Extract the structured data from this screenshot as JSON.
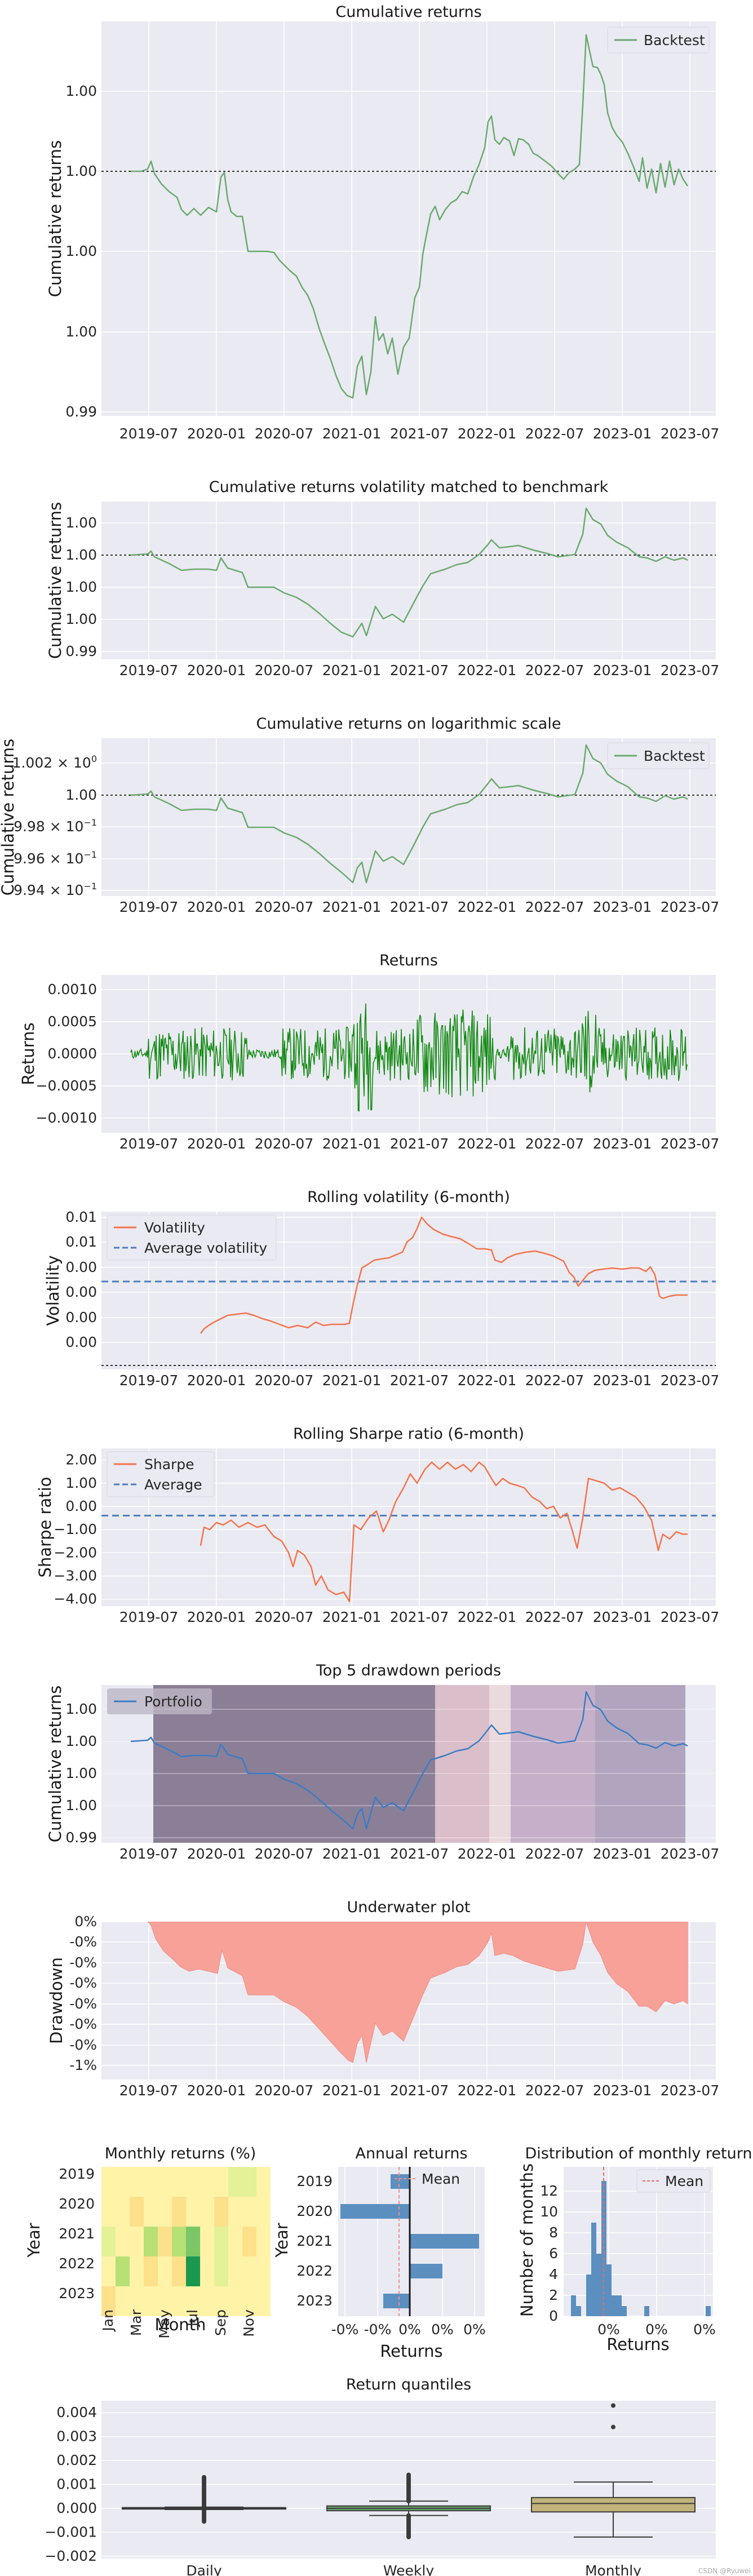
{
  "chart_data": [
    {
      "id": "cum",
      "type": "line",
      "title": "Cumulative returns",
      "ylabel": "Cumulative returns",
      "x_tick_labels": [
        "2019-07",
        "2020-01",
        "2020-07",
        "2021-01",
        "2021-07",
        "2022-01",
        "2022-07",
        "2023-01",
        "2023-07"
      ],
      "y_tick_labels": [
        "1.00",
        "1.00",
        "1.00",
        "1.00",
        "0.99"
      ],
      "legend": [
        "Backtest"
      ],
      "legend_position": "top-right",
      "reference_line": 1.0,
      "series_color": "#6aaa6e",
      "series": [
        {
          "name": "Backtest",
          "x": [
            "2019-04",
            "2019-06",
            "2019-07",
            "2019-08",
            "2019-10",
            "2019-12",
            "2020-01",
            "2020-03",
            "2020-05",
            "2020-07",
            "2020-09",
            "2020-11",
            "2021-01",
            "2021-02",
            "2021-03",
            "2021-05",
            "2021-07",
            "2021-09",
            "2021-11",
            "2022-01",
            "2022-02",
            "2022-04",
            "2022-06",
            "2022-08",
            "2022-10",
            "2022-11",
            "2022-12",
            "2023-02",
            "2023-04",
            "2023-06"
          ],
          "values": [
            1.0,
            1.0,
            1.0002,
            0.9996,
            0.9993,
            0.9994,
            0.9991,
            0.9989,
            0.9989,
            0.9985,
            0.9982,
            0.9975,
            0.9968,
            0.9974,
            0.997,
            0.9972,
            0.9988,
            0.9992,
            0.9994,
            1.001,
            1.0007,
            1.0002,
            1.0002,
            0.9998,
            1.0003,
            1.0034,
            1.0012,
            1.0002,
            0.9999,
            0.9996
          ]
        }
      ]
    },
    {
      "id": "volmatch",
      "type": "line",
      "title": "Cumulative returns volatility matched to benchmark",
      "ylabel": "Cumulative returns",
      "x_tick_labels": [
        "2019-07",
        "2020-01",
        "2020-07",
        "2021-01",
        "2021-07",
        "2022-01",
        "2022-07",
        "2023-01",
        "2023-07"
      ],
      "y_tick_labels": [
        "1.00",
        "1.00",
        "1.00",
        "1.00",
        "0.99"
      ],
      "reference_line": 1.0,
      "series_color": "#6aaa6e"
    },
    {
      "id": "log",
      "type": "line",
      "title": "Cumulative returns on logarithmic scale",
      "ylabel": "Cumulative returns",
      "log_scale": true,
      "x_tick_labels": [
        "2019-07",
        "2020-01",
        "2020-07",
        "2021-01",
        "2021-07",
        "2022-01",
        "2022-07",
        "2023-01",
        "2023-07"
      ],
      "y_tick_labels": [
        {
          "base": "1.002 × 10",
          "exp": "0"
        },
        {
          "base": "1.00",
          "exp": ""
        },
        {
          "base": "9.98 × 10",
          "exp": "−1"
        },
        {
          "base": "9.96 × 10",
          "exp": "−1"
        },
        {
          "base": "9.94 × 10",
          "exp": "−1"
        }
      ],
      "legend": [
        "Backtest"
      ],
      "legend_position": "top-right",
      "series_color": "#6aaa6e"
    },
    {
      "id": "returns",
      "type": "line",
      "title": "Returns",
      "ylabel": "Returns",
      "x_tick_labels": [
        "2019-07",
        "2020-01",
        "2020-07",
        "2021-01",
        "2021-07",
        "2022-01",
        "2022-07",
        "2023-01",
        "2023-07"
      ],
      "y_tick_labels": [
        "0.0010",
        "0.0005",
        "0.0000",
        "−0.0005",
        "−0.0010"
      ],
      "series_color": "#138a13"
    },
    {
      "id": "vol",
      "type": "line",
      "title": "Rolling volatility (6-month)",
      "ylabel": "Volatility",
      "x_tick_labels": [
        "2019-07",
        "2020-01",
        "2020-07",
        "2021-01",
        "2021-07",
        "2022-01",
        "2022-07",
        "2023-01",
        "2023-07"
      ],
      "y_tick_labels": [
        "0.01",
        "0.01",
        "0.00",
        "0.00",
        "0.00",
        "0.00"
      ],
      "legend": [
        "Volatility",
        "Average volatility"
      ],
      "legend_position": "top-left",
      "series_color": "#f5734a",
      "avg_color": "#4c7fbf"
    },
    {
      "id": "sharpe",
      "type": "line",
      "title": "Rolling Sharpe ratio (6-month)",
      "ylabel": "Sharpe ratio",
      "x_tick_labels": [
        "2019-07",
        "2020-01",
        "2020-07",
        "2021-01",
        "2021-07",
        "2022-01",
        "2022-07",
        "2023-01",
        "2023-07"
      ],
      "y_tick_labels": [
        "2.00",
        "1.00",
        "0.00",
        "−1.00",
        "−2.00",
        "−3.00",
        "−4.00"
      ],
      "legend": [
        "Sharpe",
        "Average"
      ],
      "legend_position": "top-left",
      "ylim": [
        -4.3,
        2.5
      ],
      "average": -0.4,
      "series_color": "#f5734a",
      "avg_color": "#4c7fbf"
    },
    {
      "id": "drawdown",
      "type": "line",
      "title": "Top 5 drawdown periods",
      "ylabel": "Cumulative returns",
      "x_tick_labels": [
        "2019-07",
        "2020-01",
        "2020-07",
        "2021-01",
        "2021-07",
        "2022-01",
        "2022-07",
        "2023-01",
        "2023-07"
      ],
      "y_tick_labels": [
        "1.00",
        "1.00",
        "1.00",
        "1.00",
        "0.99"
      ],
      "legend": [
        "Portfolio"
      ],
      "legend_position": "top-left",
      "series_color": "#3a7dc4",
      "periods": [
        {
          "start": "2019-08",
          "end": "2021-08",
          "color": "#6b5a78"
        },
        {
          "start": "2021-08",
          "end": "2021-12",
          "color": "#c88a9a"
        },
        {
          "start": "2021-12",
          "end": "2022-03",
          "color": "#e9cfd0"
        },
        {
          "start": "2022-03",
          "end": "2022-11",
          "color": "#a77fa8"
        },
        {
          "start": "2022-11",
          "end": "2023-06",
          "color": "#7f6a93"
        }
      ]
    },
    {
      "id": "underwater",
      "type": "area",
      "title": "Underwater plot",
      "ylabel": "Drawdown",
      "x_tick_labels": [
        "2019-07",
        "2020-01",
        "2020-07",
        "2021-01",
        "2021-07",
        "2022-01",
        "2022-07",
        "2023-01",
        "2023-07"
      ],
      "y_tick_labels": [
        "0%",
        "-0%",
        "-0%",
        "-0%",
        "-0%",
        "-0%",
        "-0%",
        "-1%"
      ],
      "series_color": "#f7a199"
    },
    {
      "id": "monthly",
      "type": "heatmap",
      "title": "Monthly returns (%)",
      "ylabel": "Year",
      "xlabel": "Month",
      "categories": [
        "Jan",
        "Mar",
        "May",
        "Jul",
        "Sep",
        "Nov"
      ],
      "years": [
        "2019",
        "2020",
        "2021",
        "2022",
        "2023"
      ]
    },
    {
      "id": "annual",
      "type": "bar",
      "title": "Annual returns",
      "ylabel": "Year",
      "xlabel": "Returns",
      "categories": [
        "2019",
        "2020",
        "2021",
        "2022",
        "2023"
      ],
      "values": [
        -0.02,
        -0.09,
        0.09,
        0.04,
        -0.03
      ],
      "x_tick_labels": [
        "-0%",
        "-0%",
        "0%",
        "0%",
        "0%"
      ],
      "legend": [
        "Mean"
      ],
      "bar_color": "#5b8fc0",
      "mean_color": "#f08c8c"
    },
    {
      "id": "dist",
      "type": "bar",
      "title": "Distribution of monthly returns",
      "ylabel": "Number of months",
      "xlabel": "Returns",
      "values": [
        2,
        1,
        4,
        9,
        6,
        13,
        5,
        2,
        2,
        1,
        1,
        1
      ],
      "y_tick_labels": [
        "12",
        "10",
        "8",
        "6",
        "4",
        "2",
        "0"
      ],
      "x_tick_labels": [
        "0%",
        "0%",
        "0%"
      ],
      "legend": [
        "Mean"
      ],
      "bar_color": "#5b8fc0",
      "mean_color": "#e26d6d"
    },
    {
      "id": "quantiles",
      "type": "box",
      "title": "Return quantiles",
      "categories": [
        "Daily",
        "Weekly",
        "Monthly"
      ],
      "y_tick_labels": [
        "0.004",
        "0.003",
        "0.002",
        "0.001",
        "0.000",
        "−0.001",
        "−0.002"
      ],
      "ylim": [
        -0.0021,
        0.0045
      ],
      "colors": [
        "#5a8a5e",
        "#6aa36e",
        "#c2b37a"
      ],
      "boxes": [
        {
          "q1": -3e-05,
          "median": 0.0,
          "q3": 3e-05,
          "whisker_low": -5e-05,
          "whisker_high": 5e-05,
          "outliers_low": -0.0006,
          "outliers_high": 0.0013
        },
        {
          "q1": -0.0001,
          "median": 0.0,
          "q3": 0.0001,
          "whisker_low": -0.0003,
          "whisker_high": 0.0003,
          "outliers_low": -0.0012,
          "outliers_high": 0.0014
        },
        {
          "q1": -0.00015,
          "median": 0.0002,
          "q3": 0.00045,
          "whisker_low": -0.0012,
          "whisker_high": 0.0011,
          "outliers_low": 0,
          "outliers_high": 0.0043
        }
      ]
    }
  ],
  "credit": "CSDN @Ryuwei"
}
